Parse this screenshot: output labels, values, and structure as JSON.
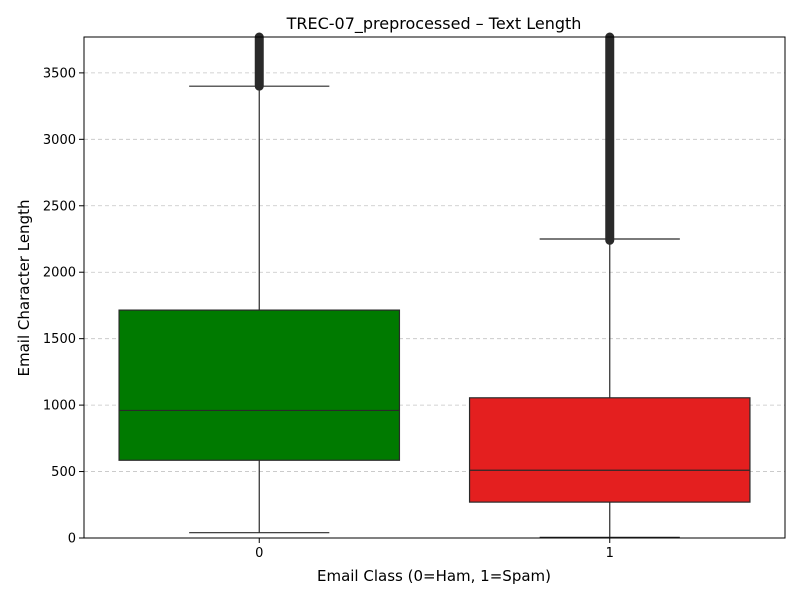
{
  "chart_data": {
    "type": "box",
    "title": "TREC-07_preprocessed – Text Length",
    "xlabel": "Email Class (0=Ham, 1=Spam)",
    "ylabel": "Email Character Length",
    "ylim": [
      0,
      3770
    ],
    "yticks": [
      0,
      500,
      1000,
      1500,
      2000,
      2500,
      3000,
      3500
    ],
    "grid": "y, dashed",
    "categories": [
      "0",
      "1"
    ],
    "boxes": [
      {
        "category": "0",
        "color": "#007a00",
        "q1": 585,
        "median": 960,
        "q3": 1715,
        "whisker_low": 40,
        "whisker_high": 3400,
        "outliers_from": 3400,
        "outliers_to": 3770
      },
      {
        "category": "1",
        "color": "#e41f1f",
        "q1": 270,
        "median": 510,
        "q3": 1055,
        "whisker_low": 5,
        "whisker_high": 2250,
        "outliers_from": 2240,
        "outliers_to": 3770
      }
    ]
  }
}
